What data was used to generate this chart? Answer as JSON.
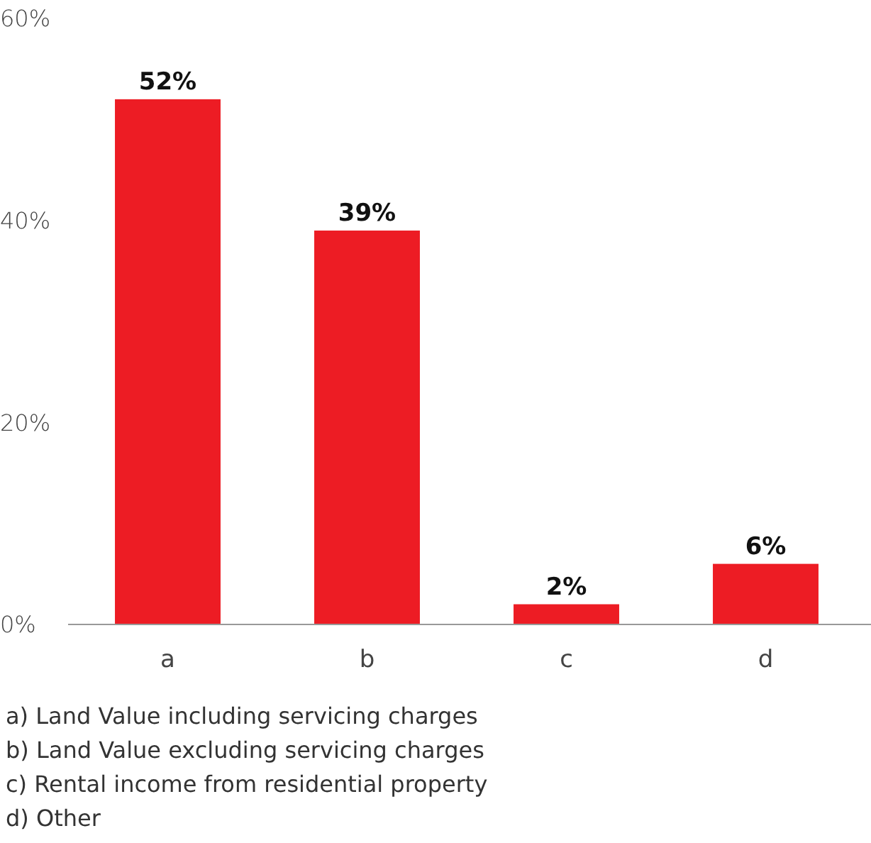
{
  "chart_data": {
    "type": "bar",
    "categories": [
      "a",
      "b",
      "c",
      "d"
    ],
    "values": [
      52,
      39,
      2,
      6
    ],
    "color": "#ed1c24",
    "value_labels": [
      "52%",
      "39%",
      "2%",
      "6%"
    ],
    "ylim": [
      0,
      60
    ],
    "yticks": [
      {
        "value": 0,
        "label": "0%"
      },
      {
        "value": 20,
        "label": "20%"
      },
      {
        "value": 40,
        "label": "40%"
      },
      {
        "value": 60,
        "label": "60%"
      }
    ],
    "annotations": [
      "a) Land Value including servicing charges",
      "b) Land Value excluding servicing charges",
      "c) Rental income from residential property",
      "d) Other"
    ]
  }
}
